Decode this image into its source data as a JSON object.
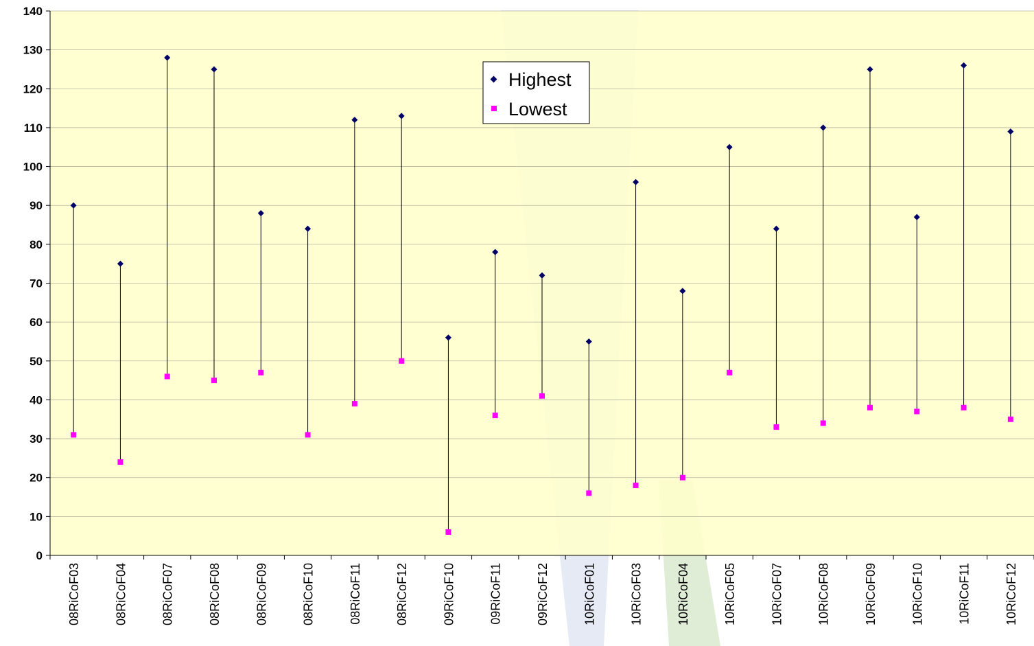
{
  "chart_data": {
    "type": "scatter",
    "subtype": "high-low",
    "categories": [
      "08RiCoF03",
      "08RiCoF04",
      "08RiCoF07",
      "08RiCoF08",
      "08RiCoF09",
      "08RiCoF10",
      "08RiCoF11",
      "08RiCoF12",
      "09RiCoF10",
      "09RiCoF11",
      "09RiCoF12",
      "10RiCoF01",
      "10RiCoF03",
      "10RiCoF04",
      "10RiCoF05",
      "10RiCoF07",
      "10RiCoF08",
      "10RiCoF09",
      "10RiCoF10",
      "10RiCoF11",
      "10RiCoF12"
    ],
    "series": [
      {
        "name": "Highest",
        "values": [
          90,
          75,
          128,
          125,
          88,
          84,
          112,
          113,
          56,
          78,
          72,
          55,
          96,
          68,
          105,
          84,
          110,
          125,
          87,
          126,
          109
        ]
      },
      {
        "name": "Lowest",
        "values": [
          31,
          24,
          46,
          45,
          47,
          31,
          39,
          50,
          6,
          36,
          41,
          16,
          18,
          20,
          47,
          33,
          34,
          38,
          37,
          38,
          35
        ]
      }
    ],
    "yticks": [
      "0",
      "10",
      "20",
      "30",
      "40",
      "50",
      "60",
      "70",
      "80",
      "90",
      "100",
      "110",
      "120",
      "130",
      "140"
    ],
    "ylim": [
      0,
      140
    ],
    "grid": true,
    "legend_position": "top-center",
    "title": "",
    "xlabel": "",
    "ylabel": ""
  },
  "colors": {
    "plot_background": "#ffffcc",
    "highest_marker": "#000066",
    "lowest_marker": "#ff00ff",
    "range_line": "#000000",
    "gridline": "#b4b4a0"
  }
}
